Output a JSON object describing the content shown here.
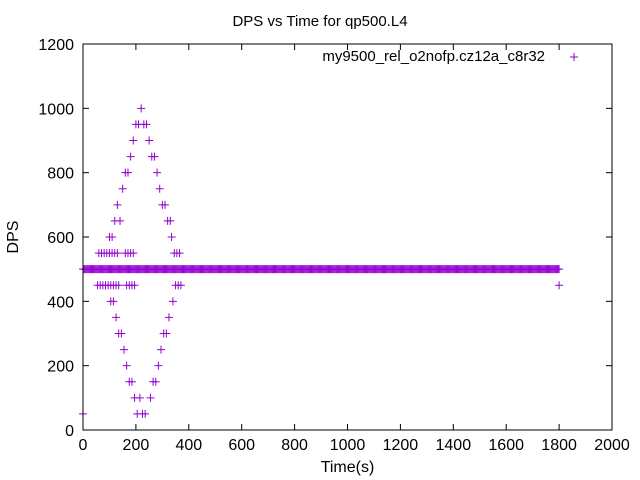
{
  "chart_data": {
    "type": "scatter",
    "title": "DPS vs Time for qp500.L4",
    "xlabel": "Time(s)",
    "ylabel": "DPS",
    "xlim": [
      0,
      2000
    ],
    "ylim": [
      0,
      1200
    ],
    "xticks": [
      0,
      200,
      400,
      600,
      800,
      1000,
      1200,
      1400,
      1600,
      1800,
      2000
    ],
    "yticks": [
      0,
      200,
      400,
      600,
      800,
      1000,
      1200
    ],
    "grid": false,
    "legend_position": "top-right",
    "marker": "plus",
    "series": [
      {
        "name": "my9500_rel_o2nofp.cz12a_c8r32",
        "color": "#9400d3",
        "baseline": {
          "y": 500,
          "x_start": 0,
          "x_end": 1800,
          "step": 4
        },
        "points": [
          [
            0,
            50
          ],
          [
            1800,
            450
          ],
          [
            55,
            450
          ],
          [
            60,
            550
          ],
          [
            65,
            450
          ],
          [
            70,
            550
          ],
          [
            75,
            450
          ],
          [
            80,
            550
          ],
          [
            85,
            450
          ],
          [
            90,
            550
          ],
          [
            95,
            450
          ],
          [
            100,
            600
          ],
          [
            105,
            400
          ],
          [
            110,
            600
          ],
          [
            115,
            400
          ],
          [
            120,
            650
          ],
          [
            125,
            350
          ],
          [
            130,
            700
          ],
          [
            135,
            300
          ],
          [
            140,
            650
          ],
          [
            145,
            300
          ],
          [
            150,
            750
          ],
          [
            155,
            250
          ],
          [
            160,
            800
          ],
          [
            165,
            200
          ],
          [
            170,
            800
          ],
          [
            175,
            150
          ],
          [
            180,
            850
          ],
          [
            185,
            150
          ],
          [
            190,
            900
          ],
          [
            195,
            100
          ],
          [
            200,
            950
          ],
          [
            205,
            50
          ],
          [
            210,
            950
          ],
          [
            215,
            100
          ],
          [
            220,
            1000
          ],
          [
            225,
            50
          ],
          [
            230,
            950
          ],
          [
            235,
            50
          ],
          [
            240,
            950
          ],
          [
            100,
            550
          ],
          [
            105,
            450
          ],
          [
            110,
            550
          ],
          [
            115,
            450
          ],
          [
            120,
            550
          ],
          [
            125,
            450
          ],
          [
            130,
            550
          ],
          [
            135,
            450
          ],
          [
            160,
            550
          ],
          [
            165,
            450
          ],
          [
            170,
            550
          ],
          [
            175,
            450
          ],
          [
            180,
            550
          ],
          [
            185,
            450
          ],
          [
            190,
            550
          ],
          [
            195,
            450
          ],
          [
            250,
            900
          ],
          [
            255,
            100
          ],
          [
            260,
            850
          ],
          [
            265,
            150
          ],
          [
            270,
            850
          ],
          [
            275,
            150
          ],
          [
            280,
            800
          ],
          [
            285,
            200
          ],
          [
            290,
            750
          ],
          [
            295,
            250
          ],
          [
            300,
            700
          ],
          [
            305,
            300
          ],
          [
            310,
            700
          ],
          [
            315,
            300
          ],
          [
            320,
            650
          ],
          [
            325,
            350
          ],
          [
            330,
            650
          ],
          [
            335,
            600
          ],
          [
            340,
            400
          ],
          [
            345,
            550
          ],
          [
            350,
            450
          ],
          [
            355,
            550
          ],
          [
            360,
            450
          ],
          [
            365,
            550
          ],
          [
            370,
            450
          ]
        ]
      }
    ]
  }
}
